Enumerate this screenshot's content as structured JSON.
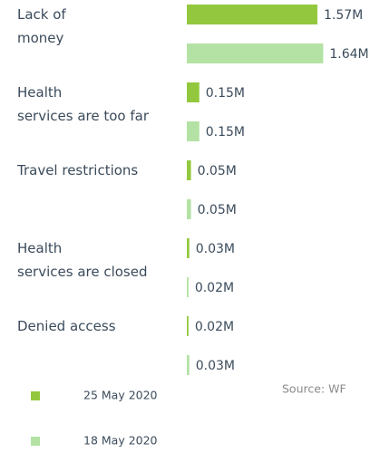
{
  "chart_data": {
    "type": "bar",
    "orientation": "horizontal",
    "categories": [
      "Lack of\nmoney",
      "Health\nservices are too far",
      "Travel restrictions",
      "Health\nservices are closed",
      "Denied access"
    ],
    "series": [
      {
        "name": "25 May 2020",
        "color": "#93c83e",
        "values": [
          1.57,
          0.15,
          0.05,
          0.03,
          0.02
        ],
        "value_labels": [
          "1.57M",
          "0.15M",
          "0.05M",
          "0.03M",
          "0.02M"
        ]
      },
      {
        "name": "18 May 2020",
        "color": "#b3e2a4",
        "values": [
          1.64,
          0.15,
          0.05,
          0.02,
          0.03
        ],
        "value_labels": [
          "1.64M",
          "0.15M",
          "0.05M",
          "0.02M",
          "0.03M"
        ]
      }
    ],
    "source": "Source: WF"
  }
}
